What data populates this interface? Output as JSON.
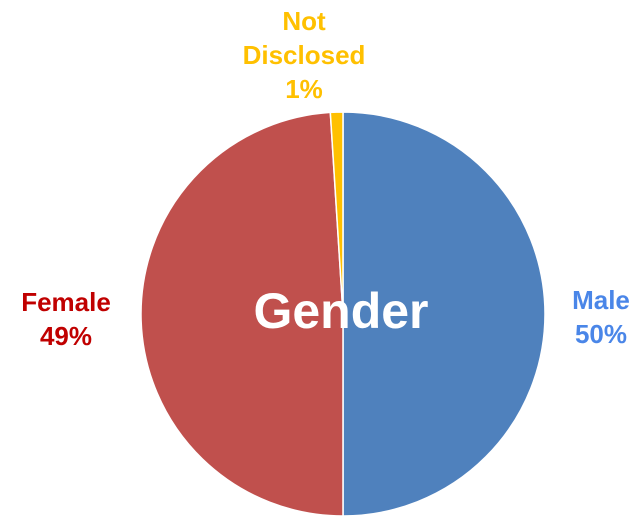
{
  "chart_data": {
    "type": "pie",
    "title": "Gender",
    "start_angle_deg": 0,
    "direction": "clockwise",
    "slices": [
      {
        "label": "Male",
        "value": 50,
        "value_label": "50%",
        "color": "#4f81bd",
        "label_color": "#4a86e8"
      },
      {
        "label": "Female",
        "value": 49,
        "value_label": "49%",
        "color": "#c0504d",
        "label_color": "#c00000"
      },
      {
        "label": "Not Disclosed",
        "value": 1,
        "value_label": "1%",
        "color": "#ffc000",
        "label_color": "#ffc000"
      }
    ],
    "title_color": "#ffffff",
    "border_color": "#ffffff"
  }
}
